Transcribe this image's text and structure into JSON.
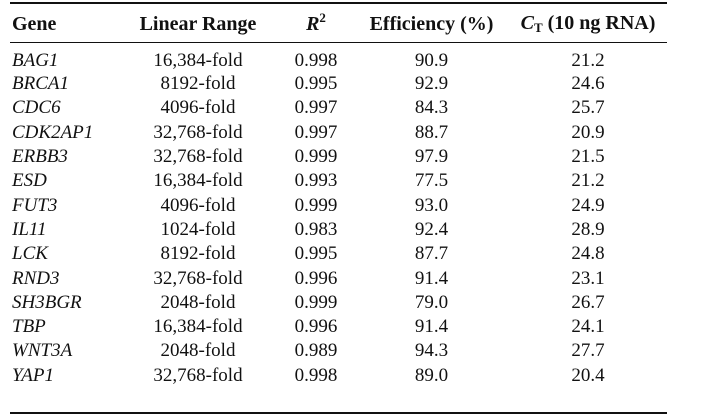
{
  "table": {
    "headers": {
      "gene": "Gene",
      "range": "Linear Range",
      "r2_base": "R",
      "r2_sup": "2",
      "efficiency": "Efficiency (%)",
      "ct_base": "C",
      "ct_sub": "T",
      "ct_rest": " (10 ng RNA)"
    },
    "rows": [
      {
        "gene": "BAG1",
        "range": "16,384-fold",
        "r2": "0.998",
        "eff": "90.9",
        "ct": "21.2"
      },
      {
        "gene": "BRCA1",
        "range": "8192-fold",
        "r2": "0.995",
        "eff": "92.9",
        "ct": "24.6"
      },
      {
        "gene": "CDC6",
        "range": "4096-fold",
        "r2": "0.997",
        "eff": "84.3",
        "ct": "25.7"
      },
      {
        "gene": "CDK2AP1",
        "range": "32,768-fold",
        "r2": "0.997",
        "eff": "88.7",
        "ct": "20.9"
      },
      {
        "gene": "ERBB3",
        "range": "32,768-fold",
        "r2": "0.999",
        "eff": "97.9",
        "ct": "21.5"
      },
      {
        "gene": "ESD",
        "range": "16,384-fold",
        "r2": "0.993",
        "eff": "77.5",
        "ct": "21.2"
      },
      {
        "gene": "FUT3",
        "range": "4096-fold",
        "r2": "0.999",
        "eff": "93.0",
        "ct": "24.9"
      },
      {
        "gene": "IL11",
        "range": "1024-fold",
        "r2": "0.983",
        "eff": "92.4",
        "ct": "28.9"
      },
      {
        "gene": "LCK",
        "range": "8192-fold",
        "r2": "0.995",
        "eff": "87.7",
        "ct": "24.8"
      },
      {
        "gene": "RND3",
        "range": "32,768-fold",
        "r2": "0.996",
        "eff": "91.4",
        "ct": "23.1"
      },
      {
        "gene": "SH3BGR",
        "range": "2048-fold",
        "r2": "0.999",
        "eff": "79.0",
        "ct": "26.7"
      },
      {
        "gene": "TBP",
        "range": "16,384-fold",
        "r2": "0.996",
        "eff": "91.4",
        "ct": "24.1"
      },
      {
        "gene": "WNT3A",
        "range": "2048-fold",
        "r2": "0.989",
        "eff": "94.3",
        "ct": "27.7"
      },
      {
        "gene": "YAP1",
        "range": "32,768-fold",
        "r2": "0.998",
        "eff": "89.0",
        "ct": "20.4"
      }
    ]
  }
}
